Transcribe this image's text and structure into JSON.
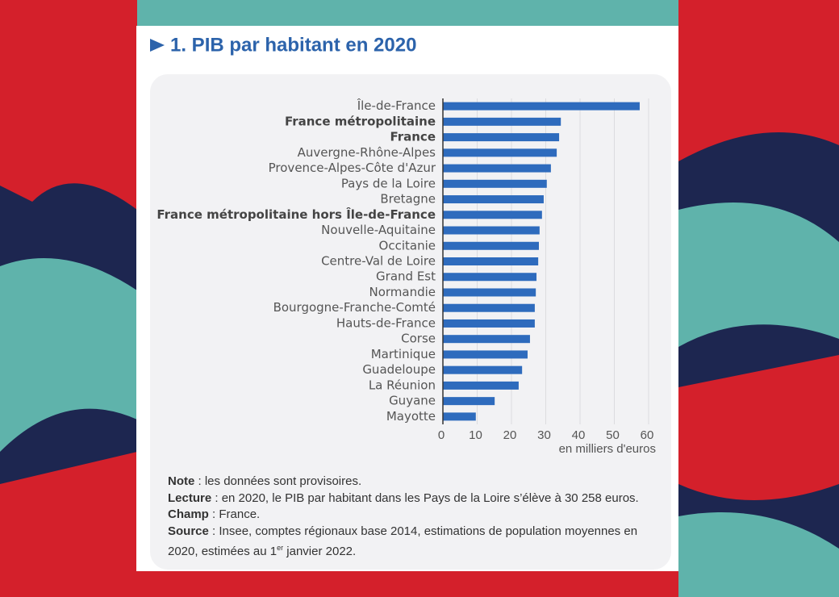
{
  "chart_data": {
    "type": "bar",
    "orientation": "horizontal",
    "title": "1. PIB par habitant en 2020",
    "categories": [
      "Île-de-France",
      "France métropolitaine",
      "France",
      "Auvergne-Rhône-Alpes",
      "Provence-Alpes-Côte d'Azur",
      "Pays de la Loire",
      "Bretagne",
      "France métropolitaine hors Île-de-France",
      "Nouvelle-Aquitaine",
      "Occitanie",
      "Centre-Val de Loire",
      "Grand Est",
      "Normandie",
      "Bourgogne-Franche-Comté",
      "Hauts-de-France",
      "Corse",
      "Martinique",
      "Guadeloupe",
      "La Réunion",
      "Guyane",
      "Mayotte"
    ],
    "values": [
      57.4,
      34.4,
      33.9,
      33.2,
      31.5,
      30.3,
      29.4,
      28.9,
      28.2,
      28.0,
      27.8,
      27.3,
      27.1,
      26.8,
      26.8,
      25.4,
      24.7,
      23.1,
      22.1,
      15.1,
      9.6
    ],
    "bold_categories": [
      1,
      2,
      7
    ],
    "color": "#2e6bbd",
    "xlim": [
      0,
      60
    ],
    "xticks": [
      0,
      10,
      20,
      30,
      40,
      50,
      60
    ],
    "grid": true,
    "xlabel": "en milliers d'euros"
  },
  "notes": [
    {
      "label": "Note",
      "text": " : les données sont provisoires."
    },
    {
      "label": "Lecture",
      "text": " : en 2020, le PIB par habitant dans les Pays de la Loire s’élève à 30 258 euros."
    },
    {
      "label": "Champ",
      "text": " : France."
    },
    {
      "label": "Source",
      "text": " : Insee, comptes régionaux base 2014, estimations de population moyennes en 2020, estimées au 1",
      "sup": "er",
      "after": " janvier 2022."
    }
  ]
}
